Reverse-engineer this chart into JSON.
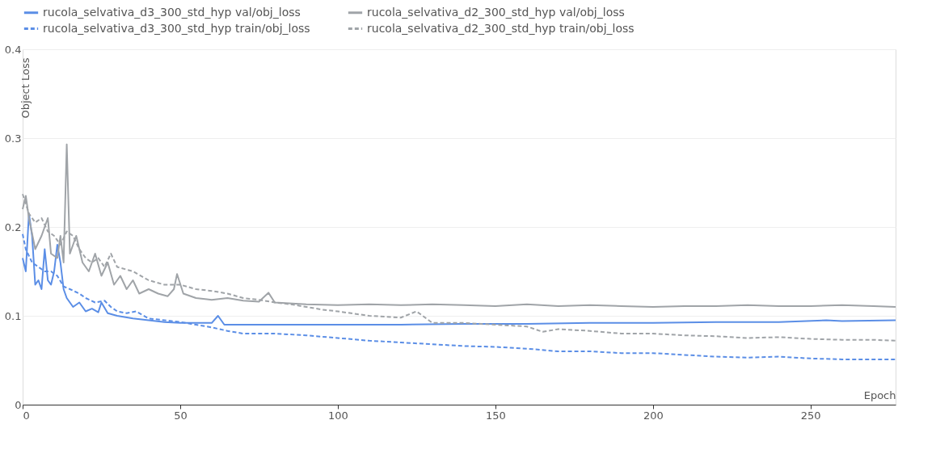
{
  "chart_data": {
    "type": "line",
    "xlabel": "Epoch",
    "ylabel": "Object Loss",
    "xlim": [
      0,
      277
    ],
    "xticks": [
      0,
      50,
      100,
      150,
      200,
      250
    ],
    "ylim": [
      0,
      0.4
    ],
    "yticks": [
      0,
      0.1,
      0.2,
      0.3,
      0.4
    ],
    "grid": "y",
    "legend": "top",
    "marker": "none",
    "series": [
      {
        "name": "rucola_selvativa_d3_300_std_hyp val/obj_loss",
        "color": "#5b8ee6",
        "line_style": "solid",
        "x": [
          0,
          1,
          2,
          3,
          4,
          5,
          6,
          7,
          8,
          9,
          10,
          11,
          12,
          13,
          14,
          16,
          18,
          20,
          22,
          24,
          25,
          27,
          30,
          35,
          40,
          45,
          50,
          55,
          60,
          62,
          64,
          70,
          80,
          100,
          120,
          140,
          160,
          180,
          200,
          220,
          240,
          255,
          260,
          277
        ],
        "values": [
          0.165,
          0.15,
          0.215,
          0.19,
          0.135,
          0.14,
          0.13,
          0.175,
          0.14,
          0.135,
          0.15,
          0.18,
          0.16,
          0.13,
          0.12,
          0.11,
          0.115,
          0.105,
          0.108,
          0.104,
          0.115,
          0.103,
          0.1,
          0.097,
          0.095,
          0.093,
          0.092,
          0.092,
          0.092,
          0.1,
          0.09,
          0.09,
          0.09,
          0.09,
          0.09,
          0.091,
          0.091,
          0.092,
          0.092,
          0.093,
          0.093,
          0.095,
          0.094,
          0.095
        ]
      },
      {
        "name": "rucola_selvativa_d2_300_std_hyp val/obj_loss",
        "color": "#a0a4a8",
        "line_style": "solid",
        "x": [
          0,
          1,
          2,
          4,
          6,
          8,
          9,
          11,
          12,
          13,
          14,
          15,
          17,
          19,
          21,
          23,
          25,
          27,
          29,
          31,
          33,
          35,
          37,
          40,
          43,
          46,
          48,
          49,
          51,
          55,
          60,
          65,
          70,
          75,
          78,
          80,
          90,
          100,
          110,
          120,
          130,
          140,
          150,
          160,
          170,
          180,
          190,
          200,
          210,
          220,
          230,
          240,
          250,
          260,
          270,
          277
        ],
        "values": [
          0.22,
          0.235,
          0.21,
          0.175,
          0.19,
          0.21,
          0.17,
          0.165,
          0.19,
          0.16,
          0.293,
          0.17,
          0.19,
          0.16,
          0.15,
          0.17,
          0.145,
          0.16,
          0.135,
          0.145,
          0.13,
          0.14,
          0.125,
          0.13,
          0.125,
          0.122,
          0.13,
          0.147,
          0.125,
          0.12,
          0.118,
          0.12,
          0.117,
          0.116,
          0.126,
          0.115,
          0.113,
          0.112,
          0.113,
          0.112,
          0.113,
          0.112,
          0.111,
          0.113,
          0.111,
          0.112,
          0.111,
          0.11,
          0.111,
          0.111,
          0.112,
          0.111,
          0.111,
          0.112,
          0.111,
          0.11
        ]
      },
      {
        "name": "rucola_selvativa_d3_300_std_hyp train/obj_loss",
        "color": "#5b8ee6",
        "line_style": "dashed",
        "x": [
          0,
          1,
          3,
          5,
          7,
          9,
          11,
          13,
          15,
          18,
          20,
          23,
          26,
          28,
          30,
          33,
          36,
          40,
          45,
          50,
          55,
          60,
          65,
          70,
          80,
          90,
          100,
          110,
          120,
          130,
          140,
          150,
          160,
          170,
          180,
          190,
          200,
          210,
          220,
          230,
          240,
          250,
          260,
          270,
          277
        ],
        "values": [
          0.192,
          0.175,
          0.16,
          0.155,
          0.15,
          0.15,
          0.145,
          0.133,
          0.13,
          0.125,
          0.12,
          0.115,
          0.117,
          0.11,
          0.105,
          0.103,
          0.105,
          0.097,
          0.095,
          0.093,
          0.09,
          0.087,
          0.083,
          0.08,
          0.08,
          0.078,
          0.075,
          0.072,
          0.07,
          0.068,
          0.066,
          0.065,
          0.063,
          0.06,
          0.06,
          0.058,
          0.058,
          0.056,
          0.054,
          0.053,
          0.054,
          0.052,
          0.051,
          0.051,
          0.051
        ]
      },
      {
        "name": "rucola_selvativa_d2_300_std_hyp train/obj_loss",
        "color": "#a0a4a8",
        "line_style": "dashed",
        "x": [
          0,
          2,
          4,
          6,
          8,
          10,
          12,
          14,
          16,
          18,
          20,
          22,
          24,
          26,
          28,
          30,
          35,
          40,
          45,
          50,
          55,
          60,
          65,
          70,
          75,
          80,
          85,
          90,
          95,
          100,
          110,
          120,
          125,
          130,
          140,
          150,
          160,
          165,
          170,
          180,
          190,
          200,
          210,
          220,
          230,
          240,
          250,
          260,
          270,
          277
        ],
        "values": [
          0.237,
          0.215,
          0.205,
          0.21,
          0.195,
          0.19,
          0.18,
          0.195,
          0.19,
          0.175,
          0.165,
          0.16,
          0.165,
          0.155,
          0.17,
          0.155,
          0.15,
          0.14,
          0.135,
          0.135,
          0.13,
          0.128,
          0.125,
          0.12,
          0.118,
          0.115,
          0.113,
          0.11,
          0.107,
          0.105,
          0.1,
          0.098,
          0.105,
          0.092,
          0.092,
          0.09,
          0.088,
          0.082,
          0.085,
          0.083,
          0.08,
          0.08,
          0.078,
          0.077,
          0.075,
          0.076,
          0.074,
          0.073,
          0.073,
          0.072
        ]
      }
    ]
  }
}
